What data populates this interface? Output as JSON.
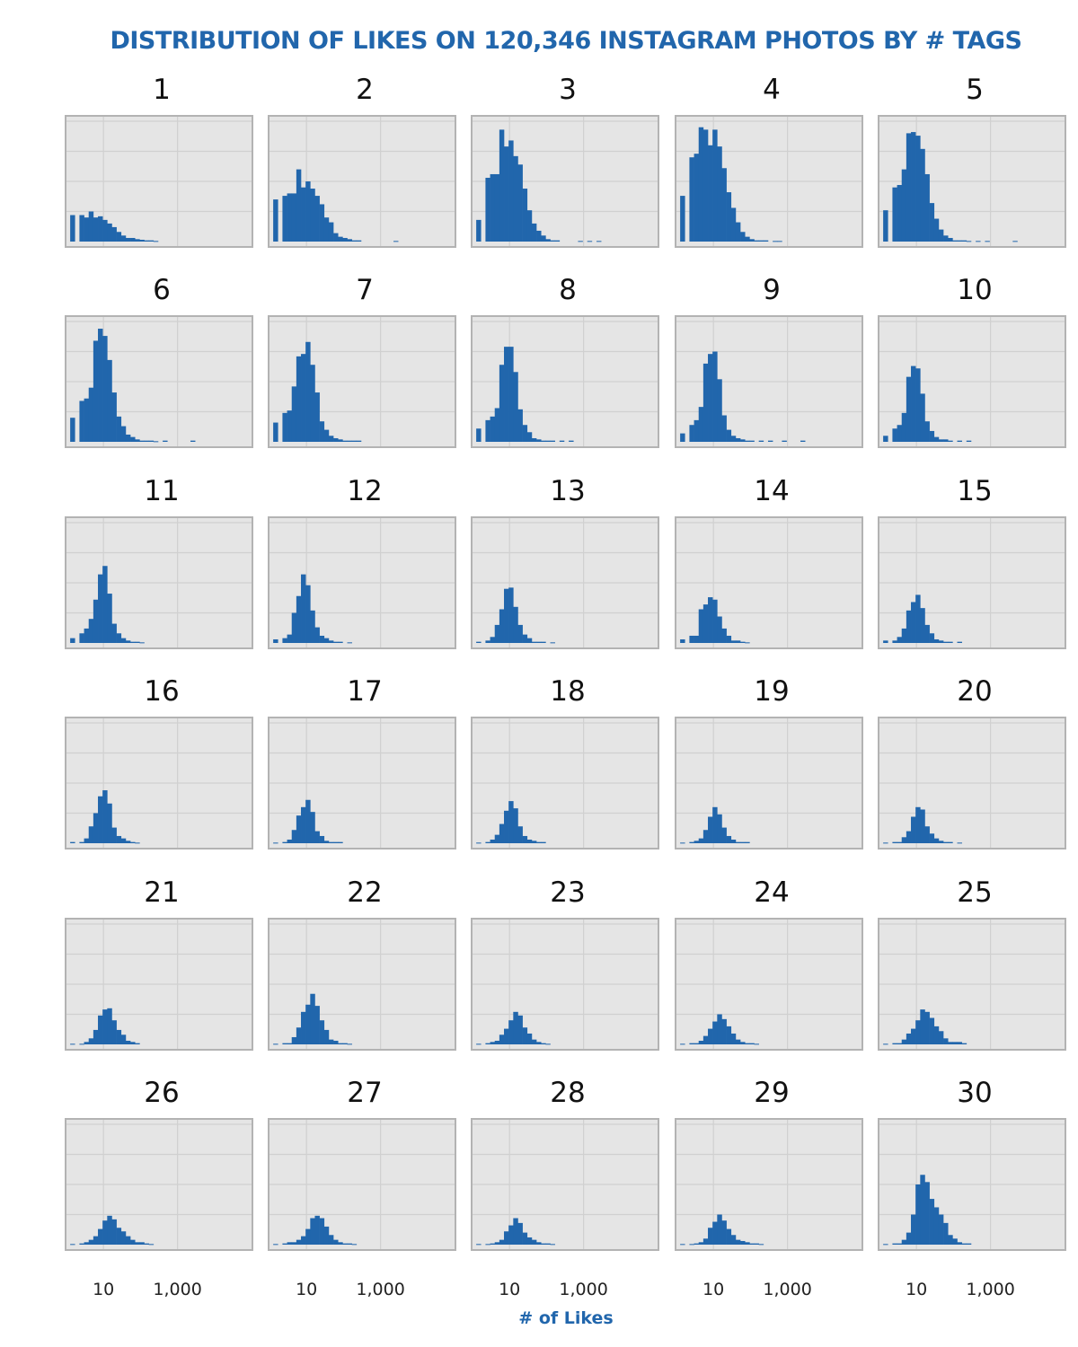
{
  "chart_data": {
    "type": "bar",
    "title": "DISTRIBUTION OF LIKES ON 120,346 INSTAGRAM PHOTOS BY # TAGS",
    "xlabel": "# of Likes",
    "ylabel": "",
    "x_scale": "log10",
    "xlim": [
      1,
      100000
    ],
    "x_ticks": [
      10,
      1000
    ],
    "x_tick_labels": [
      "10",
      "1,000"
    ],
    "ylim": [
      0,
      1
    ],
    "grid": true,
    "legend": "none",
    "colors": {
      "bar": "#2166ac",
      "panel_background": "#e5e5e5",
      "gridline": "#d0d0d0",
      "panel_border": "#b3b3b3",
      "title": "#2166ac"
    },
    "bin_width_log10": 0.125,
    "note": "Panel values are relative bar heights (fraction of panel height) in log10-spaced bins of likes; first bar is the zero-likes bin.",
    "series": [
      {
        "name": "1",
        "values": [
          0.22,
          0,
          0.22,
          0.2,
          0.25,
          0.2,
          0.21,
          0.18,
          0.15,
          0.12,
          0.08,
          0.05,
          0.03,
          0.03,
          0.02,
          0.015,
          0.01,
          0.01,
          0.005
        ]
      },
      {
        "name": "2",
        "values": [
          0.35,
          0,
          0.38,
          0.4,
          0.4,
          0.6,
          0.45,
          0.5,
          0.44,
          0.38,
          0.31,
          0.2,
          0.16,
          0.07,
          0.04,
          0.03,
          0.02,
          0.01,
          0.01,
          0,
          0,
          0,
          0,
          0,
          0,
          0,
          0.005
        ]
      },
      {
        "name": "3",
        "values": [
          0.18,
          0,
          0.53,
          0.56,
          0.56,
          0.93,
          0.79,
          0.84,
          0.71,
          0.64,
          0.44,
          0.26,
          0.15,
          0.09,
          0.05,
          0.02,
          0.01,
          0.01,
          0,
          0,
          0,
          0,
          0.005,
          0,
          0.005,
          0,
          0.005
        ]
      },
      {
        "name": "4",
        "values": [
          0.38,
          0,
          0.7,
          0.73,
          0.95,
          0.93,
          0.8,
          0.93,
          0.79,
          0.61,
          0.41,
          0.28,
          0.16,
          0.08,
          0.04,
          0.02,
          0.01,
          0.01,
          0.01,
          0,
          0.005,
          0.005
        ]
      },
      {
        "name": "5",
        "values": [
          0.26,
          0,
          0.45,
          0.47,
          0.6,
          0.9,
          0.91,
          0.88,
          0.77,
          0.56,
          0.32,
          0.19,
          0.1,
          0.05,
          0.03,
          0.01,
          0.01,
          0.01,
          0.005,
          0,
          0.005,
          0,
          0.005,
          0,
          0,
          0,
          0,
          0,
          0.005
        ]
      },
      {
        "name": "6",
        "values": [
          0.2,
          0,
          0.34,
          0.36,
          0.45,
          0.84,
          0.94,
          0.88,
          0.68,
          0.41,
          0.21,
          0.13,
          0.06,
          0.04,
          0.02,
          0.01,
          0.01,
          0.01,
          0.005,
          0,
          0.01,
          0,
          0,
          0,
          0,
          0,
          0.01
        ]
      },
      {
        "name": "7",
        "values": [
          0.16,
          0,
          0.24,
          0.26,
          0.46,
          0.71,
          0.73,
          0.83,
          0.64,
          0.41,
          0.17,
          0.1,
          0.05,
          0.03,
          0.02,
          0.01,
          0.01,
          0.01,
          0.01
        ]
      },
      {
        "name": "8",
        "values": [
          0.11,
          0,
          0.18,
          0.21,
          0.28,
          0.64,
          0.79,
          0.79,
          0.58,
          0.27,
          0.14,
          0.08,
          0.03,
          0.02,
          0.01,
          0.01,
          0.01,
          0,
          0.01,
          0,
          0.01
        ]
      },
      {
        "name": "9",
        "values": [
          0.07,
          0,
          0.14,
          0.18,
          0.29,
          0.65,
          0.73,
          0.75,
          0.52,
          0.22,
          0.1,
          0.05,
          0.03,
          0.02,
          0.01,
          0.01,
          0,
          0.01,
          0,
          0.01,
          0,
          0,
          0.01,
          0,
          0,
          0,
          0.01
        ]
      },
      {
        "name": "10",
        "values": [
          0.05,
          0,
          0.11,
          0.14,
          0.24,
          0.54,
          0.63,
          0.61,
          0.4,
          0.17,
          0.09,
          0.04,
          0.02,
          0.02,
          0.01,
          0,
          0.01,
          0,
          0.01
        ]
      },
      {
        "name": "11",
        "values": [
          0.04,
          0,
          0.08,
          0.12,
          0.2,
          0.36,
          0.57,
          0.64,
          0.41,
          0.16,
          0.08,
          0.04,
          0.02,
          0.01,
          0.01,
          0.005
        ]
      },
      {
        "name": "12",
        "values": [
          0.03,
          0,
          0.04,
          0.07,
          0.25,
          0.39,
          0.57,
          0.48,
          0.27,
          0.13,
          0.06,
          0.04,
          0.02,
          0.01,
          0.01,
          0,
          0.005
        ]
      },
      {
        "name": "13",
        "values": [
          0.01,
          0,
          0.02,
          0.05,
          0.15,
          0.28,
          0.45,
          0.46,
          0.3,
          0.15,
          0.07,
          0.04,
          0.01,
          0.01,
          0.01,
          0,
          0.005
        ]
      },
      {
        "name": "14",
        "values": [
          0.03,
          0,
          0.06,
          0.06,
          0.28,
          0.32,
          0.38,
          0.36,
          0.22,
          0.12,
          0.06,
          0.02,
          0.02,
          0.01,
          0.005
        ]
      },
      {
        "name": "15",
        "values": [
          0.02,
          0,
          0.02,
          0.05,
          0.12,
          0.27,
          0.34,
          0.4,
          0.29,
          0.15,
          0.08,
          0.03,
          0.02,
          0.01,
          0.01,
          0,
          0.01
        ]
      },
      {
        "name": "16",
        "values": [
          0.01,
          0,
          0.01,
          0.04,
          0.14,
          0.25,
          0.39,
          0.44,
          0.33,
          0.13,
          0.06,
          0.04,
          0.02,
          0.01,
          0.005
        ]
      },
      {
        "name": "17",
        "values": [
          0.005,
          0,
          0.01,
          0.03,
          0.11,
          0.23,
          0.3,
          0.36,
          0.26,
          0.1,
          0.06,
          0.02,
          0.01,
          0.01,
          0.01
        ]
      },
      {
        "name": "18",
        "values": [
          0.005,
          0,
          0.01,
          0.03,
          0.07,
          0.16,
          0.27,
          0.35,
          0.29,
          0.14,
          0.06,
          0.03,
          0.02,
          0.01,
          0.01
        ]
      },
      {
        "name": "19",
        "values": [
          0.005,
          0,
          0.01,
          0.02,
          0.04,
          0.11,
          0.22,
          0.3,
          0.24,
          0.13,
          0.06,
          0.03,
          0.01,
          0.01,
          0.01
        ]
      },
      {
        "name": "20",
        "values": [
          0.005,
          0,
          0.01,
          0.01,
          0.05,
          0.1,
          0.22,
          0.3,
          0.28,
          0.14,
          0.08,
          0.04,
          0.02,
          0.01,
          0.01,
          0,
          0.005
        ]
      },
      {
        "name": "21",
        "values": [
          0.005,
          0,
          0.005,
          0.02,
          0.05,
          0.12,
          0.24,
          0.29,
          0.3,
          0.2,
          0.12,
          0.08,
          0.03,
          0.02,
          0.01
        ]
      },
      {
        "name": "22",
        "values": [
          0.005,
          0,
          0.01,
          0.01,
          0.06,
          0.14,
          0.27,
          0.33,
          0.42,
          0.32,
          0.2,
          0.12,
          0.04,
          0.03,
          0.01,
          0.01,
          0.005
        ]
      },
      {
        "name": "23",
        "values": [
          0.005,
          0,
          0.01,
          0.02,
          0.03,
          0.08,
          0.13,
          0.2,
          0.27,
          0.24,
          0.14,
          0.09,
          0.04,
          0.02,
          0.01,
          0.005
        ]
      },
      {
        "name": "24",
        "values": [
          0.005,
          0,
          0.01,
          0.01,
          0.03,
          0.07,
          0.13,
          0.19,
          0.25,
          0.21,
          0.15,
          0.09,
          0.04,
          0.02,
          0.01,
          0.01,
          0.005
        ]
      },
      {
        "name": "25",
        "values": [
          0.005,
          0,
          0.01,
          0.01,
          0.04,
          0.09,
          0.13,
          0.2,
          0.29,
          0.27,
          0.22,
          0.15,
          0.11,
          0.05,
          0.02,
          0.02,
          0.02,
          0.01
        ]
      },
      {
        "name": "26",
        "values": [
          0.005,
          0,
          0.01,
          0.02,
          0.04,
          0.07,
          0.13,
          0.2,
          0.24,
          0.21,
          0.14,
          0.11,
          0.07,
          0.04,
          0.02,
          0.02,
          0.01,
          0.005
        ]
      },
      {
        "name": "27",
        "values": [
          0.005,
          0,
          0.01,
          0.02,
          0.02,
          0.04,
          0.07,
          0.13,
          0.22,
          0.24,
          0.22,
          0.15,
          0.08,
          0.04,
          0.02,
          0.01,
          0.01,
          0.005
        ]
      },
      {
        "name": "28",
        "values": [
          0.005,
          0,
          0.005,
          0.01,
          0.02,
          0.04,
          0.11,
          0.16,
          0.22,
          0.18,
          0.1,
          0.06,
          0.04,
          0.02,
          0.01,
          0.01,
          0.005
        ]
      },
      {
        "name": "29",
        "values": [
          0.005,
          0,
          0.005,
          0.01,
          0.02,
          0.05,
          0.14,
          0.19,
          0.25,
          0.2,
          0.13,
          0.08,
          0.04,
          0.03,
          0.02,
          0.01,
          0.01,
          0.005
        ]
      },
      {
        "name": "30",
        "values": [
          0.005,
          0,
          0.01,
          0.01,
          0.04,
          0.1,
          0.25,
          0.5,
          0.58,
          0.52,
          0.38,
          0.31,
          0.25,
          0.18,
          0.08,
          0.05,
          0.02,
          0.01,
          0.01
        ]
      }
    ]
  }
}
